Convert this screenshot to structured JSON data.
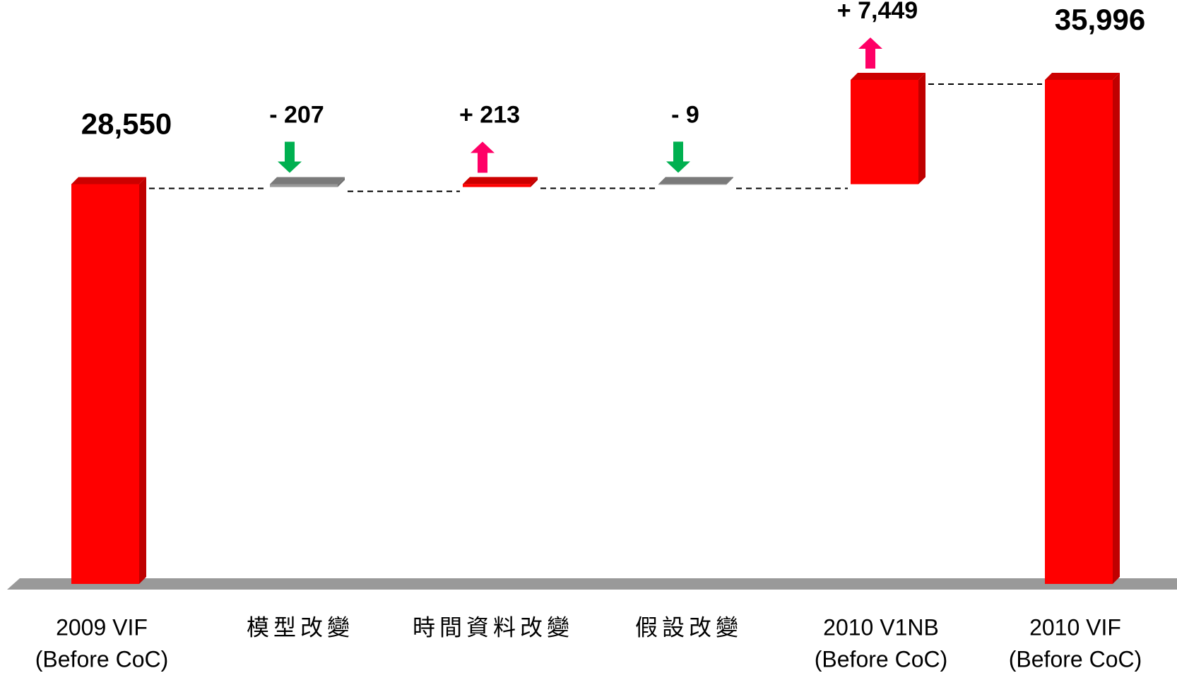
{
  "chart_data": {
    "type": "waterfall",
    "categories": [
      [
        "2009 VIF",
        "(Before CoC)"
      ],
      [
        "模型改變"
      ],
      [
        "時間資料改變"
      ],
      [
        "假設改變"
      ],
      [
        "2010 V1NB",
        "(Before CoC)"
      ],
      [
        "2010 VIF",
        "(Before CoC)"
      ]
    ],
    "values": [
      28550,
      -207,
      213,
      -9,
      7449,
      35996
    ],
    "value_labels": [
      "28,550",
      "- 207",
      "+ 213",
      "- 9",
      "+ 7,449",
      "35,996"
    ],
    "measures": [
      "total",
      "relative",
      "relative",
      "relative",
      "relative",
      "total"
    ],
    "colors": {
      "total": "#ff0000",
      "increase": "#ff0000",
      "decrease": "#999999"
    },
    "arrow_colors": {
      "increase": "#ff0066",
      "decrease": "#00b050"
    }
  }
}
